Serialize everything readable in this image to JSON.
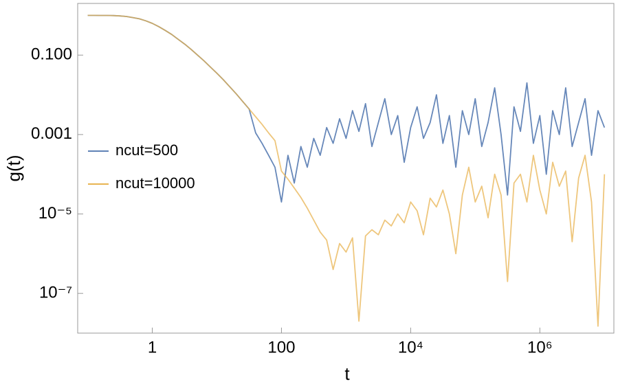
{
  "chart_data": {
    "type": "line",
    "xlabel": "t",
    "ylabel": "g(t)",
    "xscale": "log",
    "yscale": "log",
    "xlim": [
      0.07,
      14000000
    ],
    "ylim": [
      1e-08,
      2
    ],
    "xticks": [
      1,
      100,
      {
        "value": 10000,
        "label": "10⁴"
      },
      {
        "value": 1000000,
        "label": "10⁶"
      }
    ],
    "yticks": [
      {
        "value": 0.1,
        "label": "0.100"
      },
      {
        "value": 0.001,
        "label": "0.001"
      },
      {
        "value": 1e-05,
        "label": "10⁻⁵"
      },
      {
        "value": 1e-07,
        "label": "10⁻⁷"
      }
    ],
    "legend": "left",
    "x": [
      0.1,
      0.126,
      0.158,
      0.2,
      0.251,
      0.316,
      0.398,
      0.501,
      0.631,
      0.794,
      1,
      1.26,
      1.58,
      2,
      2.51,
      3.16,
      3.98,
      5.01,
      6.31,
      7.94,
      10,
      12.6,
      15.8,
      20,
      25.1,
      31.6,
      39.8,
      50.1,
      63.1,
      79.4,
      100,
      126,
      158,
      200,
      251,
      316,
      398,
      501,
      631,
      794,
      1000,
      1260,
      1580,
      2000,
      2510,
      3160,
      3980,
      5010,
      6310,
      7940,
      10000.0,
      12600.0,
      15800.0,
      20000.0,
      25100.0,
      31600.0,
      39800.0,
      50100.0,
      63100.0,
      79400.0,
      100000.0,
      126000.0,
      158000.0,
      200000.0,
      251000.0,
      316000.0,
      398000.0,
      501000.0,
      631000.0,
      794000.0,
      1000000.0,
      1260000.0,
      1580000.0,
      2000000.0,
      2510000.0,
      3160000.0,
      3980000.0,
      5010000.0,
      6310000.0,
      7940000.0,
      10000000.0
    ],
    "series": [
      {
        "name": "ncut=500",
        "color": "#5e81b5",
        "values": [
          1,
          0.999,
          0.998,
          0.995,
          0.99,
          0.97,
          0.94,
          0.88,
          0.82,
          0.73,
          0.63,
          0.52,
          0.42,
          0.33,
          0.25,
          0.19,
          0.14,
          0.1,
          0.072,
          0.05,
          0.035,
          0.024,
          0.016,
          0.0105,
          0.0068,
          0.0044,
          0.0011,
          0.0006,
          0.0003,
          0.00015,
          2e-05,
          0.0003,
          6e-05,
          0.0005,
          0.00015,
          0.0008,
          0.0003,
          0.0015,
          0.0006,
          0.0025,
          0.0008,
          0.004,
          0.0012,
          0.006,
          0.0005,
          0.002,
          0.008,
          0.001,
          0.003,
          0.0002,
          0.0015,
          0.005,
          0.0008,
          0.002,
          0.01,
          0.0006,
          0.003,
          0.00015,
          0.004,
          0.001,
          0.008,
          0.0005,
          0.002,
          0.015,
          0.001,
          3e-05,
          0.005,
          0.0012,
          0.02,
          0.0006,
          0.003,
          0.0001,
          0.004,
          0.001,
          0.015,
          0.0005,
          0.002,
          0.008,
          0.0003,
          0.004,
          0.0015
        ]
      },
      {
        "name": "ncut=10000",
        "color": "#e8b350",
        "values": [
          1,
          0.999,
          0.998,
          0.995,
          0.99,
          0.97,
          0.94,
          0.88,
          0.82,
          0.73,
          0.63,
          0.52,
          0.42,
          0.33,
          0.25,
          0.19,
          0.14,
          0.1,
          0.072,
          0.05,
          0.035,
          0.024,
          0.016,
          0.0105,
          0.0068,
          0.0044,
          0.0028,
          0.0018,
          0.0011,
          0.0007,
          0.00012,
          7.5e-05,
          4.5e-05,
          2.6e-05,
          1.4e-05,
          7e-06,
          3.5e-06,
          2.2e-06,
          4e-07,
          1.8e-06,
          1.1e-06,
          2.5e-06,
          2e-08,
          2.8e-06,
          4e-06,
          3e-06,
          7e-06,
          5e-06,
          1e-05,
          6e-06,
          2e-05,
          1.2e-05,
          3e-06,
          2.5e-05,
          1.5e-05,
          4e-05,
          1e-05,
          1e-06,
          3e-05,
          0.00015,
          2e-05,
          5e-05,
          8e-06,
          0.0001,
          3e-05,
          2e-07,
          6e-05,
          0.0001,
          2e-05,
          0.0003,
          4e-05,
          1e-05,
          0.0002,
          5e-05,
          0.00012,
          2e-06,
          8e-05,
          0.0003,
          2e-05,
          1.5e-08,
          0.0001
        ]
      }
    ]
  }
}
